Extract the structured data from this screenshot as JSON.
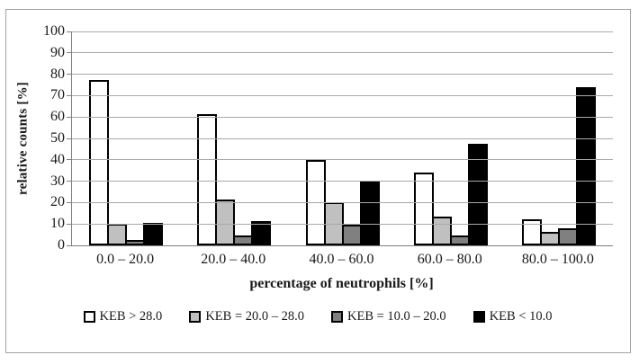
{
  "chart_data": {
    "type": "bar",
    "title": "",
    "xlabel": "percentage of neutrophils [%]",
    "ylabel": "relative counts [%]",
    "categories": [
      "0.0 – 20.0",
      "20.0 – 40.0",
      "40.0 – 60.0",
      "60.0 – 80.0",
      "80.0 – 100.0"
    ],
    "series": [
      {
        "name": "KEB > 28.0",
        "color": "#ffffff",
        "values": [
          77.5,
          61.5,
          40.0,
          34.0,
          12.0
        ]
      },
      {
        "name": "KEB = 20.0 – 28.0",
        "color": "#c0c0c0",
        "values": [
          10.0,
          21.5,
          20.0,
          13.5,
          6.5
        ]
      },
      {
        "name": "KEB = 10.0 – 20.0",
        "color": "#808080",
        "values": [
          2.5,
          4.5,
          9.5,
          4.5,
          8.0
        ]
      },
      {
        "name": "KEB < 10.0",
        "color": "#000000",
        "values": [
          10.5,
          11.5,
          30.0,
          47.5,
          74.0
        ]
      }
    ],
    "ylim": [
      0,
      100
    ],
    "yticks": [
      0,
      10,
      20,
      30,
      40,
      50,
      60,
      70,
      80,
      90,
      100
    ],
    "grid": true,
    "legend_position": "bottom",
    "colors": {
      "gridline": "#a9a9a9",
      "axis": "#7f7f7f",
      "frame_border": "#a3a3a3",
      "bar_outline": "#000000"
    }
  }
}
